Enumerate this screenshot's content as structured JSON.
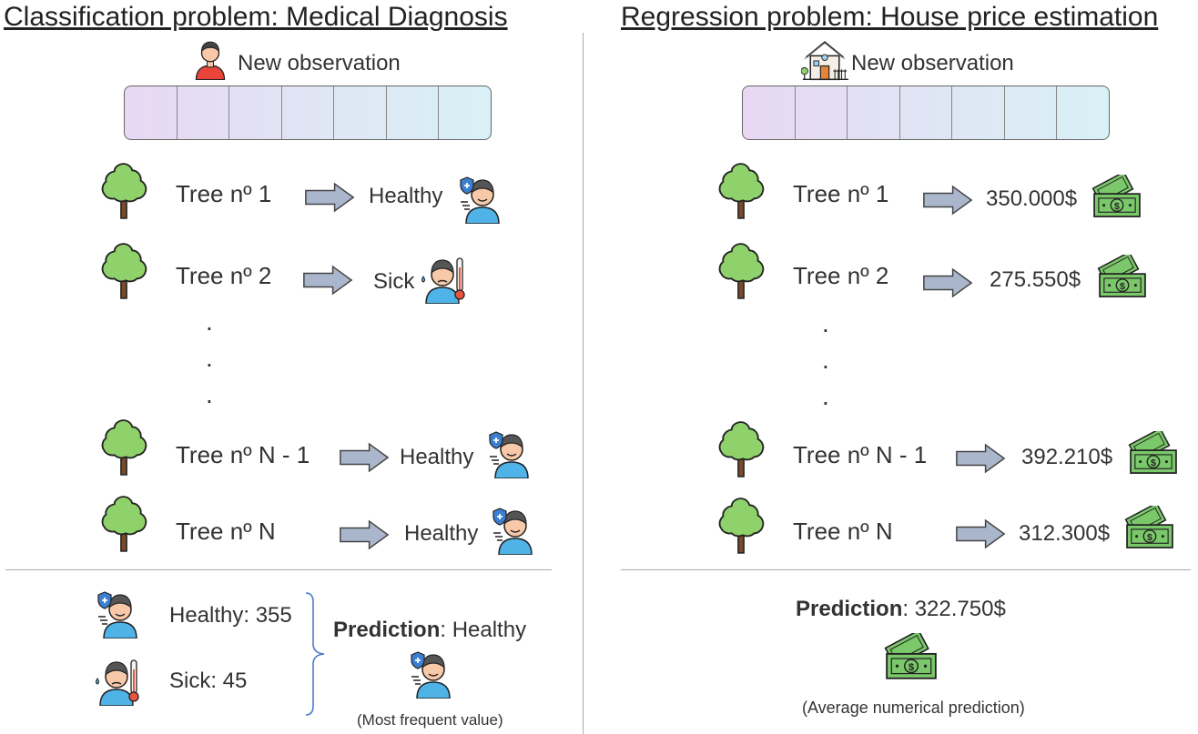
{
  "left": {
    "title_bold": "Classification problem",
    "title_rest": ": Medical Diagnosis",
    "new_observation": "New observation",
    "trees": [
      {
        "label": "Tree nº 1",
        "result": "Healthy"
      },
      {
        "label": "Tree nº 2",
        "result": "Sick"
      },
      {
        "label": "Tree nº N - 1",
        "result": "Healthy"
      },
      {
        "label": "Tree nº N",
        "result": "Healthy"
      }
    ],
    "dots": ".",
    "summary": {
      "healthy": "Healthy: 355",
      "sick": "Sick: 45",
      "prediction_bold": "Prediction",
      "prediction_rest": ": Healthy",
      "note": "(Most frequent value)"
    }
  },
  "right": {
    "title_bold": "Regression problem",
    "title_rest": ": House price estimation",
    "new_observation": "New observation",
    "trees": [
      {
        "label": "Tree nº 1",
        "result": "350.000$"
      },
      {
        "label": "Tree nº 2",
        "result": "275.550$"
      },
      {
        "label": "Tree nº N - 1",
        "result": "392.210$"
      },
      {
        "label": "Tree nº N",
        "result": "312.300$"
      }
    ],
    "dots": ".",
    "summary": {
      "prediction_bold": "Prediction",
      "prediction_rest": ": 322.750$",
      "note": "(Average numerical prediction)"
    }
  },
  "colors": {
    "tree_green": "#8fd16a",
    "tree_trunk": "#7a4a2a",
    "arrow_fill": "#a9b6cc",
    "money_green": "#7bc86b",
    "person_shirt": "#4fb3e8",
    "vector_start": "#e8d8f3",
    "vector_end": "#d8f1f6"
  },
  "icons": [
    "person-icon",
    "house-icon",
    "tree-icon",
    "arrow-right-icon",
    "healthy-person-icon",
    "sick-person-icon",
    "money-icon",
    "brace-icon"
  ]
}
